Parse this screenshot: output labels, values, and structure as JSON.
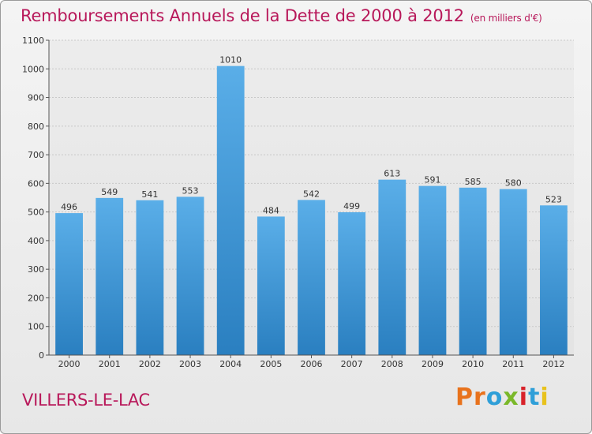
{
  "title": "Remboursements Annuels de la Dette de 2000 à 2012",
  "unit_note": "(en milliers d'€)",
  "commune": "VILLERS-LE-LAC",
  "logo_text": "Proxiti",
  "logo_colors": [
    "#e8721c",
    "#e8721c",
    "#2f9fd8",
    "#7ab82a",
    "#d8222a",
    "#2f9fd8",
    "#e8c21c"
  ],
  "bar_color_top": "#5aaee8",
  "bar_color_bottom": "#2a7fc0",
  "chart_data": {
    "type": "bar",
    "categories": [
      "2000",
      "2001",
      "2002",
      "2003",
      "2004",
      "2005",
      "2006",
      "2007",
      "2008",
      "2009",
      "2010",
      "2011",
      "2012"
    ],
    "values": [
      496,
      549,
      541,
      553,
      1010,
      484,
      542,
      499,
      613,
      591,
      585,
      580,
      523
    ],
    "yticks": [
      0,
      100,
      200,
      300,
      400,
      500,
      600,
      700,
      800,
      900,
      1000,
      1100
    ],
    "ylim": [
      0,
      1100
    ],
    "grid": true,
    "legend": "none"
  }
}
